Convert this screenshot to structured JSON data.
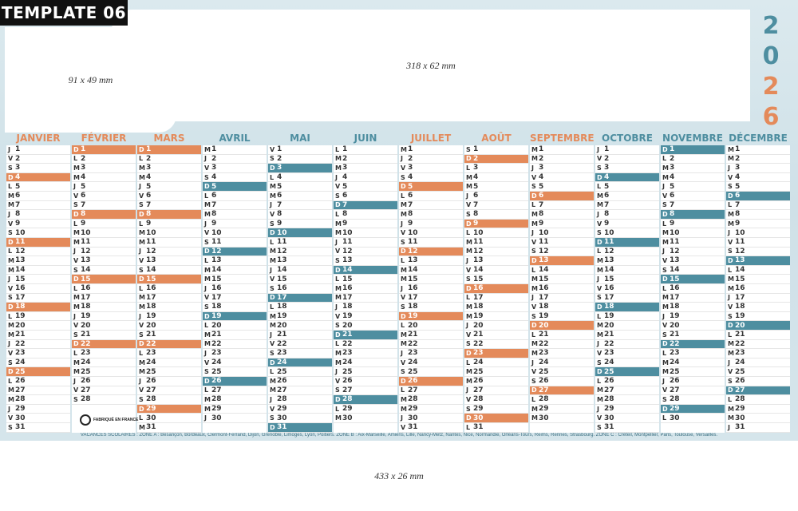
{
  "template_label": "TEMPLATE 06",
  "zones": {
    "left_box": "91 x 49 mm",
    "top_box": "318 x 62 mm",
    "bottom_box": "433 x 26 mm"
  },
  "year_digits": [
    "2",
    "0",
    "2",
    "6"
  ],
  "colors": {
    "orange": "#e48a5a",
    "teal": "#4e8ea0"
  },
  "months": [
    {
      "name": "JANVIER 2026",
      "color": "#e48a5a"
    },
    {
      "name": "FÉVRIER",
      "color": "#e48a5a"
    },
    {
      "name": "MARS",
      "color": "#e48a5a"
    },
    {
      "name": "AVRIL",
      "color": "#4e8ea0"
    },
    {
      "name": "MAI",
      "color": "#4e8ea0"
    },
    {
      "name": "JUIN",
      "color": "#4e8ea0"
    },
    {
      "name": "JUILLET",
      "color": "#e48a5a"
    },
    {
      "name": "AOÛT",
      "color": "#e48a5a"
    },
    {
      "name": "SEPTEMBRE",
      "color": "#e48a5a"
    },
    {
      "name": "OCTOBRE",
      "color": "#4e8ea0"
    },
    {
      "name": "NOVEMBRE",
      "color": "#4e8ea0"
    },
    {
      "name": "DÉCEMBRE",
      "color": "#4e8ea0"
    }
  ],
  "calendar": {
    "day_letters": [
      "L",
      "M",
      "M",
      "J",
      "V",
      "S",
      "D"
    ],
    "month_lengths": [
      31,
      28,
      31,
      30,
      31,
      30,
      31,
      31,
      30,
      31,
      30,
      31
    ],
    "first_weekday_index": [
      3,
      6,
      6,
      2,
      4,
      0,
      2,
      5,
      1,
      3,
      6,
      1
    ]
  },
  "legend_text": "VACANCES SCOLAIRES : ZONE A : Besançon, Bordeaux, Clermont-Ferrand, Dijon, Grenoble, Limoges, Lyon, Poitiers. ZONE B : Aix-Marseille, Amiens, Lille, Nancy-Metz, Nantes, Nice, Normandie, Orléans-Tours, Reims, Rennes, Strasbourg. ZONE C : Créteil, Montpellier, Paris, Toulouse, Versailles.",
  "logo_text": "FABRIQUÉ EN FRANCE"
}
